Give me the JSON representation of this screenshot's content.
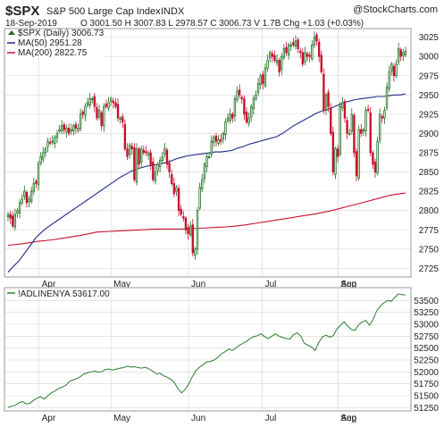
{
  "header": {
    "symbol": "$SPX",
    "name": "S&P 500 Large Cap Index",
    "exchange": "INDX",
    "watermark": "@StockCharts.com",
    "date": "18-Sep-2019",
    "quote": "O 3001.50  H 3007.83  L 2978.57  C 3006.73  V 1.7B  Chg +1.03 (+0.03%)"
  },
  "legend": {
    "price": "$SPX (Daily) 3006.73",
    "ma50": "MA(50) 2951.28",
    "ma200": "MA(200) 2822.75"
  },
  "colors": {
    "up": "#1e6e1e",
    "down": "#c8102e",
    "ma50": "#1f2a8a",
    "ma200": "#c8102e",
    "breadth": "#2e7d2e",
    "grid": "#d6d6d6"
  },
  "chart_data": [
    {
      "type": "candlestick",
      "title": "$SPX (Daily) 3006.73",
      "ylim": [
        2715,
        3035
      ],
      "y_ticks": [
        2725,
        2750,
        2775,
        2800,
        2825,
        2850,
        2875,
        2900,
        2925,
        2950,
        2975,
        3000,
        3025
      ],
      "x_ticks": [
        "Apr",
        "May",
        "Jun",
        "Jul",
        "Aug",
        "Sep"
      ],
      "grid": true,
      "legend_position": "top-left",
      "close": [
        2795,
        2790,
        2780,
        2795,
        2800,
        2810,
        2815,
        2825,
        2810,
        2815,
        2825,
        2835,
        2835,
        2860,
        2870,
        2875,
        2880,
        2890,
        2888,
        2890,
        2895,
        2900,
        2905,
        2910,
        2905,
        2907,
        2900,
        2905,
        2910,
        2907,
        2907,
        2925,
        2925,
        2935,
        2940,
        2945,
        2945,
        2935,
        2920,
        2930,
        2910,
        2935,
        2935,
        2940,
        2945,
        2940,
        2935,
        2920,
        2920,
        2915,
        2880,
        2870,
        2885,
        2880,
        2840,
        2880,
        2860,
        2880,
        2875,
        2875,
        2875,
        2860,
        2840,
        2850,
        2860,
        2865,
        2870,
        2880,
        2860,
        2850,
        2835,
        2822,
        2830,
        2800,
        2795,
        2790,
        2775,
        2770,
        2780,
        2745,
        2750,
        2800,
        2830,
        2840,
        2860,
        2870,
        2870,
        2890,
        2895,
        2890,
        2892,
        2890,
        2900,
        2915,
        2920,
        2925,
        2920,
        2945,
        2955,
        2950,
        2945,
        2925,
        2915,
        2920,
        2935,
        2945,
        2950,
        2965,
        2975,
        2965,
        2985,
        2995,
        3005,
        3000,
        2995,
        2995,
        2980,
        3000,
        3010,
        3005,
        3015,
        3015,
        3015,
        3020,
        3010,
        3005,
        2990,
        3005,
        3000,
        3000,
        3015,
        3025,
        3020,
        3000,
        2980,
        2930,
        2950,
        2935,
        2900,
        2850,
        2880,
        2870,
        2935,
        2940,
        2920,
        2900,
        2900,
        2925,
        2875,
        2845,
        2905,
        2900,
        2905,
        2930,
        2930,
        2875,
        2860,
        2850,
        2890,
        2925,
        2920,
        2930,
        2960,
        2980,
        2990,
        2975,
        2990,
        3010,
        3000,
        3005,
        3006.73
      ],
      "ma50": [
        2720,
        2728,
        2735,
        2745,
        2755,
        2765,
        2772,
        2778,
        2783,
        2788,
        2793,
        2798,
        2803,
        2808,
        2813,
        2818,
        2823,
        2828,
        2833,
        2838,
        2843,
        2847,
        2851,
        2854,
        2856,
        2858,
        2859,
        2860,
        2862,
        2864,
        2867,
        2869,
        2871,
        2872,
        2873,
        2874,
        2875,
        2876,
        2876,
        2877,
        2878,
        2881,
        2883,
        2886,
        2888,
        2890,
        2892,
        2894,
        2896,
        2900,
        2905,
        2910,
        2914,
        2918,
        2922,
        2926,
        2929,
        2931,
        2934,
        2937,
        2940,
        2942,
        2944,
        2945,
        2946,
        2947,
        2948,
        2948,
        2949,
        2950,
        2950,
        2951.28
      ],
      "ma200": [
        2755,
        2757,
        2760,
        2762,
        2765,
        2768,
        2772,
        2773,
        2774,
        2775,
        2776,
        2776,
        2776,
        2777,
        2778,
        2779,
        2781,
        2784,
        2787,
        2790,
        2793,
        2796,
        2800,
        2805,
        2810,
        2815,
        2820,
        2822.75
      ]
    },
    {
      "type": "line",
      "title": "!ADLINENYA 53617.00",
      "ylim": [
        51200,
        53750
      ],
      "y_ticks": [
        51250,
        51500,
        51750,
        52000,
        52250,
        52500,
        52750,
        53000,
        53250,
        53500
      ],
      "x_ticks": [
        "Apr",
        "May",
        "Jun",
        "Jul",
        "Aug",
        "Sep"
      ],
      "grid": true,
      "values": [
        51250,
        51280,
        51300,
        51350,
        51380,
        51330,
        51340,
        51400,
        51450,
        51480,
        51430,
        51500,
        51560,
        51600,
        51650,
        51680,
        51720,
        51800,
        51830,
        51860,
        51900,
        51960,
        51980,
        52000,
        52020,
        51990,
        52010,
        52050,
        52060,
        52040,
        52060,
        52080,
        52090,
        52120,
        52100,
        52110,
        52090,
        52080,
        52100,
        52060,
        52020,
        51960,
        51970,
        51920,
        51890,
        51850,
        51780,
        51650,
        51560,
        51630,
        51750,
        51900,
        52030,
        52100,
        52150,
        52210,
        52220,
        52250,
        52300,
        52380,
        52420,
        52480,
        52450,
        52500,
        52560,
        52600,
        52640,
        52700,
        52740,
        52760,
        52800,
        52740,
        52700,
        52750,
        52800,
        52750,
        52720,
        52700,
        52690,
        52780,
        52820,
        52750,
        52600,
        52560,
        52520,
        52450,
        52620,
        52740,
        52770,
        52730,
        52760,
        52900,
        52980,
        53050,
        52960,
        52890,
        52870,
        52990,
        53050,
        53080,
        52980,
        53100,
        53280,
        53380,
        53450,
        53500,
        53480,
        53560,
        53640,
        53620,
        53617
      ]
    }
  ]
}
